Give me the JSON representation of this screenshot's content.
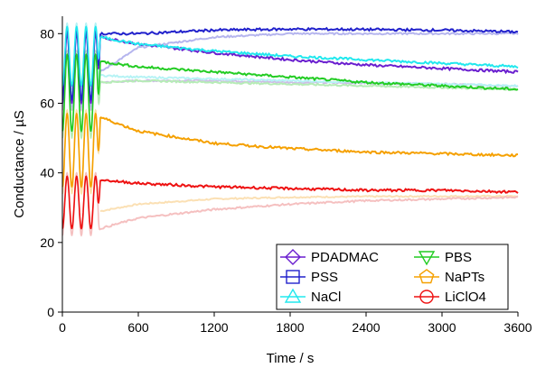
{
  "chart_data": {
    "type": "line",
    "xlabel": "Time / s",
    "ylabel": "Conductance / µS",
    "xlim": [
      0,
      3600
    ],
    "ylim": [
      0,
      85
    ],
    "x_ticks": [
      "0",
      "600",
      "1200",
      "1800",
      "2400",
      "3000",
      "3600"
    ],
    "y_ticks": [
      "0",
      "20",
      "40",
      "60",
      "80"
    ],
    "legend_placement": "bottom-right",
    "legend_columns": 2,
    "series": [
      {
        "name": "PDADMAC",
        "marker": "diamond",
        "color": "#6a1fcf",
        "light_color": "#cdbde6",
        "oscillation": {
          "x_start": 0,
          "x_end": 300,
          "y_min": 60,
          "y_max": 80,
          "cycles": 4
        },
        "x": [
          300,
          600,
          1200,
          1800,
          2400,
          3000,
          3600
        ],
        "y": [
          79,
          77,
          74.5,
          72.5,
          71,
          70,
          69
        ],
        "light_x": [
          300,
          600,
          1200,
          1800,
          2400,
          3000,
          3600
        ],
        "light_y": [
          66,
          66.5,
          66.5,
          66,
          65.8,
          65.5,
          65
        ]
      },
      {
        "name": "PSS",
        "marker": "square",
        "color": "#2222cc",
        "light_color": "#b5b5ee",
        "oscillation": {
          "x_start": 0,
          "x_end": 300,
          "y_min": 61,
          "y_max": 81,
          "cycles": 4
        },
        "x": [
          300,
          600,
          1200,
          1800,
          2400,
          3000,
          3600
        ],
        "y": [
          80,
          80,
          81,
          81.3,
          81.2,
          81,
          80.5
        ],
        "light_x": [
          300,
          600,
          1200,
          1800,
          2400,
          3000,
          3600
        ],
        "light_y": [
          69,
          76,
          79,
          80,
          80,
          80,
          80
        ]
      },
      {
        "name": "NaCl",
        "marker": "triangle-up",
        "color": "#22e8ee",
        "light_color": "#b6f3f5",
        "oscillation": {
          "x_start": 0,
          "x_end": 300,
          "y_min": 65,
          "y_max": 82,
          "cycles": 4
        },
        "x": [
          300,
          600,
          1200,
          1800,
          2400,
          3000,
          3600
        ],
        "y": [
          79,
          77,
          75,
          73.5,
          72.5,
          71.5,
          70.5
        ],
        "light_x": [
          300,
          600,
          1200,
          1800,
          2400,
          3000,
          3600
        ],
        "light_y": [
          68,
          67.5,
          67,
          66.5,
          66,
          65.5,
          65
        ]
      },
      {
        "name": "PBS",
        "marker": "triangle-down",
        "color": "#22cc22",
        "light_color": "#b6ecb6",
        "oscillation": {
          "x_start": 0,
          "x_end": 300,
          "y_min": 52,
          "y_max": 74,
          "cycles": 4
        },
        "x": [
          300,
          600,
          1200,
          1800,
          2400,
          3000,
          3600
        ],
        "y": [
          72,
          70.5,
          69,
          67.5,
          66,
          65,
          64
        ],
        "light_x": [
          300,
          600,
          1200,
          1800,
          2400,
          3000,
          3600
        ],
        "light_y": [
          66,
          66.5,
          66,
          65.5,
          65,
          64.5,
          64
        ]
      },
      {
        "name": "NaPTs",
        "marker": "pentagon",
        "color": "#f5a000",
        "light_color": "#fae0a8",
        "oscillation": {
          "x_start": 0,
          "x_end": 300,
          "y_min": 36,
          "y_max": 57,
          "cycles": 4
        },
        "x": [
          300,
          600,
          1200,
          1800,
          2400,
          3000,
          3600
        ],
        "y": [
          56,
          52,
          48.5,
          47,
          46,
          45.5,
          45
        ],
        "light_x": [],
        "light_y": []
      },
      {
        "name": "LiClO4",
        "marker": "circle",
        "color": "#ee1111",
        "light_color": "#f5c0c0",
        "oscillation": {
          "x_start": 0,
          "x_end": 300,
          "y_min": 24,
          "y_max": 39,
          "cycles": 4
        },
        "x": [
          300,
          600,
          1200,
          1800,
          2400,
          3000,
          3600
        ],
        "y": [
          38,
          37,
          36,
          35.5,
          35,
          35,
          34.5
        ],
        "light_x": [
          300,
          600,
          1200,
          1800,
          2400,
          3000,
          3600
        ],
        "light_y": [
          24,
          27,
          29.5,
          31,
          32,
          32.5,
          33
        ]
      }
    ],
    "extra_light_curve": {
      "color": "#fbe0b4",
      "x": [
        300,
        600,
        1200,
        1800,
        2400,
        3000,
        3600
      ],
      "y": [
        29,
        31,
        32.5,
        33,
        33.2,
        33.3,
        33.3
      ]
    }
  }
}
